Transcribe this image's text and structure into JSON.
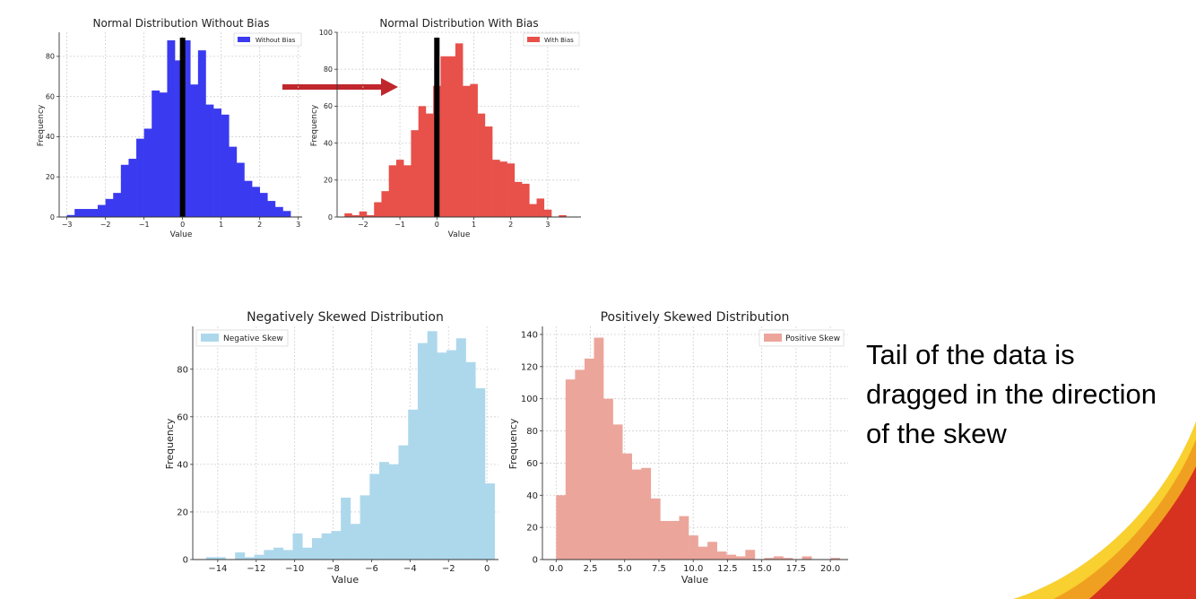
{
  "chart_data": [
    {
      "id": "c1",
      "type": "bar",
      "title": "Normal Distribution Without Bias",
      "xlabel": "Value",
      "ylabel": "Frequency",
      "xlim": [
        -3.2,
        3.1
      ],
      "ylim": [
        0,
        92
      ],
      "xticks": [
        -3,
        -2,
        -1,
        0,
        1,
        2,
        3
      ],
      "xtick_labels": [
        "−3",
        "−2",
        "−1",
        "0",
        "1",
        "2",
        "3"
      ],
      "yticks": [
        0,
        20,
        40,
        60,
        80
      ],
      "ytick_labels": [
        "0",
        "20",
        "40",
        "60",
        "80"
      ],
      "legend": "Without Bias",
      "legend_position": "top-right",
      "color": "#3a3af0",
      "bin_start": -3.0,
      "bin_width": 0.2,
      "values": [
        1,
        4,
        4,
        4,
        6,
        9,
        12,
        26,
        29,
        39,
        44,
        63,
        62,
        88,
        78,
        88,
        66,
        83,
        56,
        54,
        51,
        35,
        27,
        18,
        15,
        12,
        8,
        5,
        3
      ],
      "vline": {
        "x": 0,
        "color": "#000000"
      }
    },
    {
      "id": "c2",
      "type": "bar",
      "title": "Normal Distribution With Bias",
      "xlabel": "Value",
      "ylabel": "Frequency",
      "xlim": [
        -2.7,
        3.9
      ],
      "ylim": [
        0,
        100
      ],
      "xticks": [
        -2,
        -1,
        0,
        1,
        2,
        3
      ],
      "xtick_labels": [
        "−2",
        "−1",
        "0",
        "1",
        "2",
        "3"
      ],
      "yticks": [
        0,
        20,
        40,
        60,
        80,
        100
      ],
      "ytick_labels": [
        "0",
        "20",
        "40",
        "60",
        "80",
        "100"
      ],
      "legend": "With Bias",
      "legend_position": "top-right",
      "color": "#e8504a",
      "bin_start": -2.5,
      "bin_width": 0.2,
      "values": [
        2,
        1,
        3,
        1,
        8,
        14,
        28,
        31,
        28,
        47,
        60,
        56,
        71,
        87,
        87,
        94,
        71,
        72,
        56,
        49,
        31,
        30,
        29,
        19,
        18,
        7,
        10,
        4,
        0,
        1
      ],
      "vline": {
        "x": 0,
        "color": "#000000"
      }
    },
    {
      "id": "c3",
      "type": "bar",
      "title": "Negatively Skewed Distribution",
      "xlabel": "Value",
      "ylabel": "Frequency",
      "xlim": [
        -15.3,
        0.6
      ],
      "ylim": [
        0,
        98
      ],
      "xticks": [
        -14,
        -12,
        -10,
        -8,
        -6,
        -4,
        -2,
        0
      ],
      "xtick_labels": [
        "−14",
        "−12",
        "−10",
        "−8",
        "−6",
        "−4",
        "−2",
        "0"
      ],
      "yticks": [
        0,
        20,
        40,
        60,
        80
      ],
      "ytick_labels": [
        "0",
        "20",
        "40",
        "60",
        "80"
      ],
      "legend": "Negative Skew",
      "legend_position": "top-left",
      "color": "#add8ec",
      "bin_start": -14.6,
      "bin_width": 0.5,
      "values": [
        1,
        1,
        0,
        3,
        1,
        2,
        4,
        5,
        4,
        11,
        5,
        9,
        11,
        12,
        26,
        15,
        27,
        36,
        41,
        40,
        48,
        63,
        91,
        96,
        87,
        88,
        93,
        83,
        72,
        32
      ]
    },
    {
      "id": "c4",
      "type": "bar",
      "title": "Positively Skewed Distribution",
      "xlabel": "Value",
      "ylabel": "Frequency",
      "xlim": [
        -1.0,
        21.3
      ],
      "ylim": [
        0,
        145
      ],
      "xticks": [
        0.0,
        2.5,
        5.0,
        7.5,
        10.0,
        12.5,
        15.0,
        17.5,
        20.0
      ],
      "xtick_labels": [
        "0.0",
        "2.5",
        "5.0",
        "7.5",
        "10.0",
        "12.5",
        "15.0",
        "17.5",
        "20.0"
      ],
      "yticks": [
        0,
        20,
        40,
        60,
        80,
        100,
        120,
        140
      ],
      "ytick_labels": [
        "0",
        "20",
        "40",
        "60",
        "80",
        "100",
        "120",
        "140"
      ],
      "legend": "Positive Skew",
      "legend_position": "top-right",
      "color": "#eca59b",
      "bin_start": 0.0,
      "bin_width": 0.69,
      "values": [
        40,
        112,
        118,
        125,
        138,
        100,
        84,
        66,
        56,
        57,
        38,
        24,
        24,
        27,
        15,
        8,
        11,
        5,
        3,
        2,
        6,
        0,
        1,
        2,
        1,
        0,
        2,
        0,
        0,
        1
      ]
    }
  ],
  "caption": {
    "lines": [
      "Tail of the data is",
      "dragged in the direction",
      "of the skew"
    ]
  },
  "colors": {
    "arrow": "#c0272d",
    "corner_red": "#d7321f",
    "corner_orange": "#f0a020",
    "corner_yellow": "#f8d030"
  }
}
